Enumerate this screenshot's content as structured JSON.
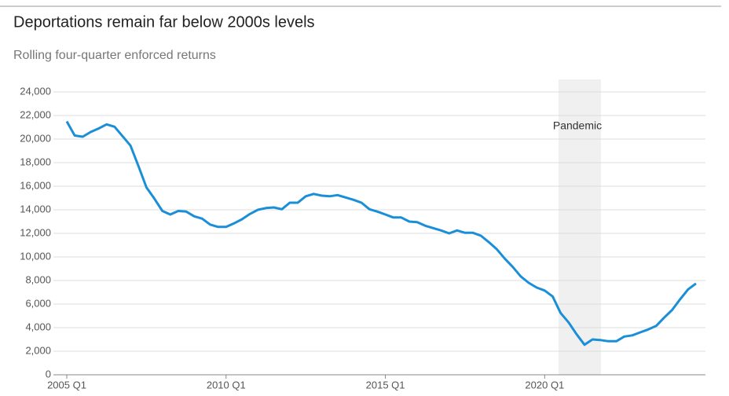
{
  "chart_data": {
    "type": "line",
    "title": "Deportations remain far below 2000s levels",
    "subtitle": "Rolling four-quarter enforced returns",
    "annotation": "Pandemic",
    "categories": [
      "2005 Q1",
      null,
      null,
      null,
      null,
      null,
      null,
      null,
      null,
      null,
      null,
      null,
      null,
      null,
      null,
      null,
      null,
      null,
      null,
      null,
      "2010 Q1",
      null,
      null,
      null,
      null,
      null,
      null,
      null,
      null,
      null,
      null,
      null,
      null,
      null,
      null,
      null,
      null,
      null,
      null,
      null,
      "2015 Q1",
      null,
      null,
      null,
      null,
      null,
      null,
      null,
      null,
      null,
      null,
      null,
      null,
      null,
      null,
      null,
      null,
      null,
      null,
      null,
      "2020 Q1",
      null,
      null,
      null,
      null,
      null,
      null,
      null,
      null,
      null,
      null,
      null,
      null,
      null,
      null,
      null,
      null,
      null,
      null,
      null
    ],
    "series": [
      {
        "color": "#1a8fd8",
        "values": [
          21500,
          20300,
          20200,
          20600,
          20900,
          21250,
          21050,
          20250,
          19450,
          17700,
          15900,
          14950,
          13900,
          13600,
          13900,
          13850,
          13450,
          13250,
          12750,
          12550,
          12550,
          12850,
          13200,
          13650,
          14000,
          14150,
          14200,
          14050,
          14600,
          14600,
          15150,
          15350,
          15200,
          15150,
          15250,
          15050,
          14850,
          14600,
          14050,
          13850,
          13600,
          13350,
          13350,
          13000,
          12950,
          12650,
          12450,
          12250,
          12000,
          12250,
          12050,
          12050,
          11800,
          11250,
          10650,
          9850,
          9150,
          8350,
          7800,
          7400,
          7150,
          6650,
          5250,
          4450,
          3450,
          2550,
          3000,
          2950,
          2850,
          2850,
          3250,
          3350,
          3600,
          3850,
          4150,
          4850,
          5500,
          6400,
          7250,
          7750
        ]
      }
    ],
    "ylim": [
      0,
      24000
    ],
    "yticks": [
      0,
      {
        "value": 2000,
        "label": "2,000"
      },
      {
        "value": 4000,
        "label": "4,000"
      },
      {
        "value": 6000,
        "label": "6,000"
      },
      {
        "value": 8000,
        "label": "8,000"
      },
      {
        "value": 10000,
        "label": "10,000"
      },
      {
        "value": 12000,
        "label": "12,000"
      },
      {
        "value": 14000,
        "label": "14,000"
      },
      {
        "value": 16000,
        "label": "16,000"
      },
      {
        "value": 18000,
        "label": "18,000"
      },
      {
        "value": 20000,
        "label": "20,000"
      },
      {
        "value": 22000,
        "label": "22,000"
      },
      {
        "value": 24000,
        "label": "24,000"
      }
    ],
    "grid": true
  }
}
